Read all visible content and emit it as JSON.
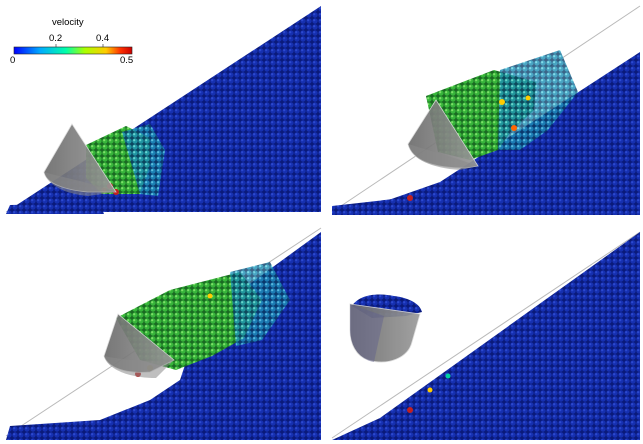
{
  "legend": {
    "title": "velocity",
    "tick_labels": [
      "0",
      "0.2",
      "0.4",
      "0.5"
    ],
    "colors": [
      "#0000ff",
      "#00aaff",
      "#00ffaa",
      "#aaff00",
      "#ffcc00",
      "#ff3300",
      "#cc0000"
    ]
  },
  "colors": {
    "particle_bg": "#0a1a7a",
    "particle_slow": "#1230b8",
    "particle_fast_mid": "#2ab14a",
    "particle_fast": "#c22020",
    "tool": "#7a7a7a",
    "tool_outline": "#d9d9d9",
    "incline_line": "#b9b9b9"
  },
  "panels": [
    {
      "name": "panel-top-left"
    },
    {
      "name": "panel-top-right"
    },
    {
      "name": "panel-bottom-left"
    },
    {
      "name": "panel-bottom-right"
    }
  ]
}
